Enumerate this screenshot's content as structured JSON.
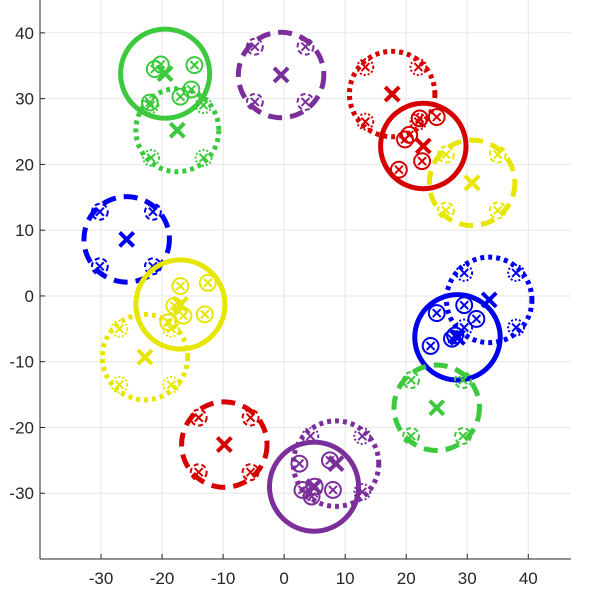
{
  "chart_data": {
    "type": "scatter",
    "title": "",
    "xlabel": "",
    "ylabel": "",
    "xlim": [
      -40,
      47
    ],
    "ylim": [
      -40,
      45
    ],
    "grid": true,
    "x_ticks": [
      -30,
      -20,
      -10,
      0,
      10,
      20,
      30,
      40
    ],
    "y_ticks": [
      -30,
      -20,
      -10,
      0,
      10,
      20,
      30,
      40
    ],
    "colors": {
      "green": "#3dc93d",
      "purple": "#7b2f9b",
      "red": "#d60000",
      "yellow": "#e6e600",
      "blue": "#0000ee"
    },
    "clusters": [
      {
        "color": "green",
        "style": "solid",
        "center": [
          -19.5,
          33.8
        ],
        "radius": 7.3,
        "subs": [
          [
            -21.2,
            34.5
          ],
          [
            -14.7,
            35.1
          ],
          [
            -22.0,
            29.4
          ],
          [
            -17.0,
            30.3
          ],
          [
            -15.2,
            31.4
          ],
          [
            -20.2,
            35.2
          ]
        ]
      },
      {
        "color": "green",
        "style": "dotted",
        "center": [
          -17.5,
          25.2
        ],
        "radius": 6.8,
        "subs": [
          [
            -21.9,
            29.0
          ],
          [
            -13.2,
            29.0
          ],
          [
            -21.8,
            21.0
          ],
          [
            -13.2,
            21.0
          ]
        ]
      },
      {
        "color": "purple",
        "style": "dashed",
        "center": [
          -0.5,
          33.6
        ],
        "radius": 7.0,
        "subs": [
          [
            -4.8,
            37.9
          ],
          [
            3.5,
            37.9
          ],
          [
            -4.8,
            29.5
          ],
          [
            3.5,
            29.5
          ]
        ]
      },
      {
        "color": "red",
        "style": "dotted",
        "center": [
          17.7,
          30.7
        ],
        "radius": 7.0,
        "subs": [
          [
            13.3,
            34.8
          ],
          [
            22.0,
            34.8
          ],
          [
            13.3,
            26.5
          ],
          [
            22.0,
            26.5
          ]
        ]
      },
      {
        "color": "red",
        "style": "solid",
        "center": [
          22.8,
          22.8
        ],
        "radius": 7.0,
        "subs": [
          [
            19.8,
            23.8
          ],
          [
            25.0,
            27.2
          ],
          [
            20.5,
            24.5
          ],
          [
            22.6,
            20.5
          ],
          [
            18.8,
            19.2
          ],
          [
            22.2,
            27.0
          ]
        ]
      },
      {
        "color": "yellow",
        "style": "dashed",
        "center": [
          30.8,
          17.2
        ],
        "radius": 7.0,
        "subs": [
          [
            26.5,
            21.5
          ],
          [
            35.0,
            21.5
          ],
          [
            26.5,
            13.0
          ],
          [
            35.0,
            13.0
          ]
        ]
      },
      {
        "color": "blue",
        "style": "dashed",
        "center": [
          -25.8,
          8.6
        ],
        "radius": 7.0,
        "subs": [
          [
            -30.2,
            12.8
          ],
          [
            -21.5,
            12.8
          ],
          [
            -30.2,
            4.5
          ],
          [
            -21.5,
            4.5
          ]
        ]
      },
      {
        "color": "blue",
        "style": "dotted",
        "center": [
          33.6,
          -0.6
        ],
        "radius": 7.0,
        "subs": [
          [
            29.5,
            3.5
          ],
          [
            38.0,
            3.5
          ],
          [
            29.5,
            -4.8
          ],
          [
            38.0,
            -4.8
          ]
        ]
      },
      {
        "color": "blue",
        "style": "solid",
        "center": [
          28.4,
          -6.3
        ],
        "radius": 7.0,
        "subs": [
          [
            25.0,
            -2.6
          ],
          [
            29.5,
            -1.4
          ],
          [
            31.5,
            -3.5
          ],
          [
            27.5,
            -6.5
          ],
          [
            28.0,
            -6.0
          ],
          [
            24.0,
            -7.6
          ]
        ]
      },
      {
        "color": "yellow",
        "style": "solid",
        "center": [
          -17.0,
          -1.3
        ],
        "radius": 7.3,
        "subs": [
          [
            -17.0,
            1.5
          ],
          [
            -12.5,
            2.0
          ],
          [
            -13.0,
            -2.8
          ],
          [
            -19.0,
            -4.0
          ],
          [
            -16.5,
            -3.0
          ],
          [
            -18.0,
            -1.5
          ]
        ]
      },
      {
        "color": "yellow",
        "style": "dotted",
        "center": [
          -22.8,
          -9.3
        ],
        "radius": 7.0,
        "subs": [
          [
            -27.0,
            -5.0
          ],
          [
            -18.5,
            -5.0
          ],
          [
            -27.0,
            -13.5
          ],
          [
            -18.5,
            -13.5
          ]
        ]
      },
      {
        "color": "green",
        "style": "dashed",
        "center": [
          25.0,
          -17.0
        ],
        "radius": 7.0,
        "subs": [
          [
            20.8,
            -12.8
          ],
          [
            29.3,
            -12.8
          ],
          [
            20.8,
            -21.3
          ],
          [
            29.3,
            -21.3
          ]
        ]
      },
      {
        "color": "red",
        "style": "dashed",
        "center": [
          -9.8,
          -22.6
        ],
        "radius": 7.0,
        "subs": [
          [
            -14.0,
            -18.5
          ],
          [
            -5.5,
            -18.5
          ],
          [
            -14.0,
            -26.8
          ],
          [
            -5.5,
            -26.8
          ]
        ]
      },
      {
        "color": "purple",
        "style": "dotted",
        "center": [
          8.5,
          -25.5
        ],
        "radius": 7.0,
        "subs": [
          [
            4.3,
            -21.3
          ],
          [
            12.8,
            -21.3
          ],
          [
            4.3,
            -29.8
          ],
          [
            12.8,
            -29.8
          ]
        ]
      },
      {
        "color": "purple",
        "style": "solid",
        "center": [
          4.9,
          -29.0
        ],
        "radius": 7.3,
        "subs": [
          [
            2.5,
            -25.5
          ],
          [
            7.5,
            -25.0
          ],
          [
            8.0,
            -29.5
          ],
          [
            3.0,
            -29.5
          ],
          [
            5.0,
            -29.0
          ],
          [
            4.5,
            -30.5
          ]
        ]
      }
    ]
  }
}
